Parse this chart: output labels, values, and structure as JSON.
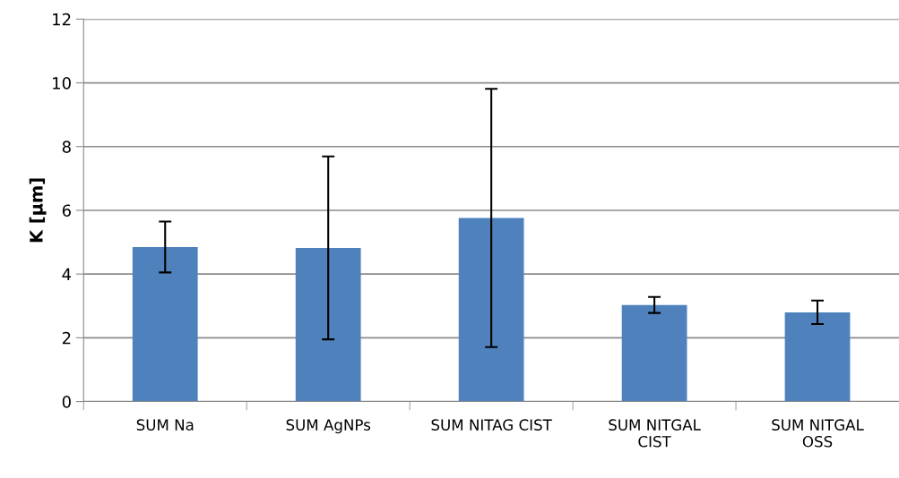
{
  "chart_data": {
    "type": "bar",
    "ylabel": "K [µm]",
    "categories": [
      "SUM Na",
      "SUM AgNPs",
      "SUM NITAG CIST",
      "SUM NITGAL\nCIST",
      "SUM NITGAL\nOSS"
    ],
    "values": [
      4.85,
      4.82,
      5.76,
      3.03,
      2.8
    ],
    "errors": [
      0.8,
      2.87,
      4.05,
      0.25,
      0.37
    ],
    "color": "#4f81bd",
    "ylim": [
      0,
      12
    ],
    "yticks": [
      0,
      2,
      4,
      6,
      8,
      10,
      12
    ],
    "grid": "y"
  }
}
